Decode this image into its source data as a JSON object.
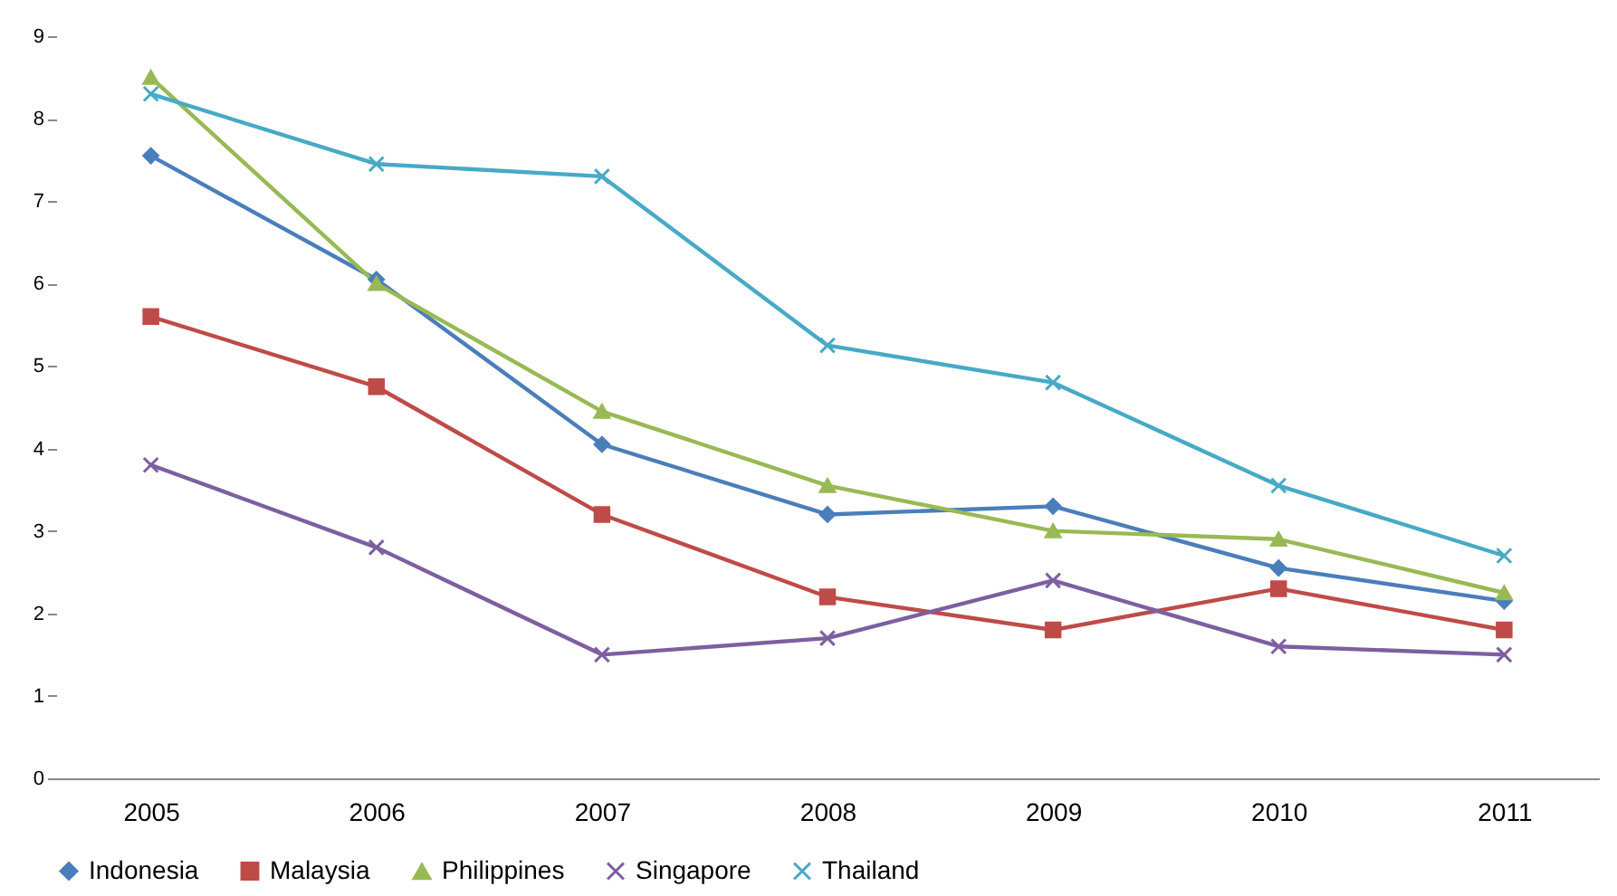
{
  "chart_data": {
    "type": "line",
    "categories": [
      "2005",
      "2006",
      "2007",
      "2008",
      "2009",
      "2010",
      "2011"
    ],
    "ylim": [
      0,
      9
    ],
    "yticks": [
      0,
      1,
      2,
      3,
      4,
      5,
      6,
      7,
      8,
      9
    ],
    "grid": false,
    "legend": "bottom",
    "series": [
      {
        "name": "Indonesia",
        "color": "#4a7ebb",
        "marker": "diamond",
        "values": [
          7.55,
          6.05,
          4.05,
          3.2,
          3.3,
          2.55,
          2.15
        ]
      },
      {
        "name": "Malaysia",
        "color": "#be4b48",
        "marker": "square",
        "values": [
          5.6,
          4.75,
          3.2,
          2.2,
          1.8,
          2.3,
          1.8
        ]
      },
      {
        "name": "Philippines",
        "color": "#98b954",
        "marker": "triangle",
        "values": [
          8.5,
          6.0,
          4.45,
          3.55,
          3.0,
          2.9,
          2.25
        ]
      },
      {
        "name": "Singapore",
        "color": "#7d5fa0",
        "marker": "cross",
        "values": [
          3.8,
          2.8,
          1.5,
          1.7,
          2.4,
          1.6,
          1.5
        ]
      },
      {
        "name": "Thailand",
        "color": "#46aac5",
        "marker": "cross",
        "values": [
          8.3,
          7.45,
          7.3,
          5.25,
          4.8,
          3.55,
          2.7
        ]
      }
    ]
  }
}
